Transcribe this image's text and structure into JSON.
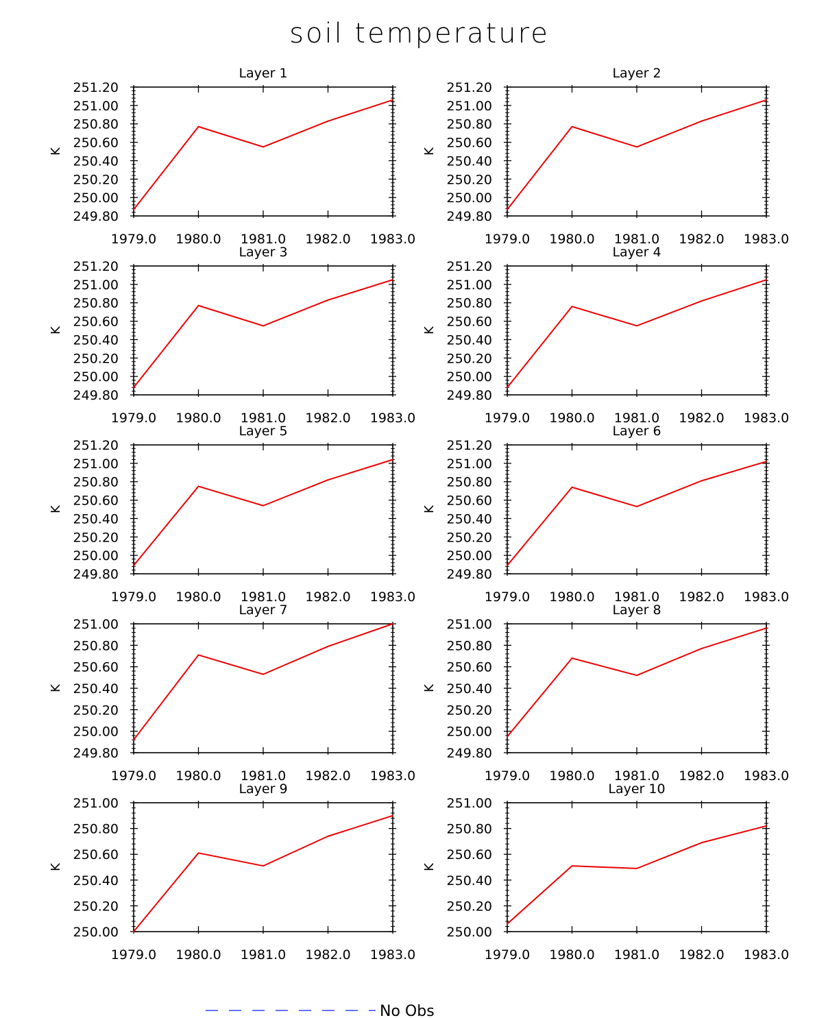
{
  "chart_data": {
    "type": "line",
    "title": "soil temperature",
    "legend": {
      "label": "No Obs",
      "color": "#3344ff",
      "style": "dashed",
      "placement": "bottom-center"
    },
    "series_color": "#ee0000",
    "panels": [
      {
        "title": "Layer 1",
        "ylabel": "K",
        "x": [
          1979.0,
          1980.0,
          1981.0,
          1982.0,
          1983.0
        ],
        "y": [
          249.87,
          250.77,
          250.55,
          250.83,
          251.06
        ],
        "xlim": [
          1979.0,
          1983.0
        ],
        "ylim": [
          249.8,
          251.2
        ],
        "xticks": [
          "1979.0",
          "1980.0",
          "1981.0",
          "1982.0",
          "1983.0"
        ],
        "yticks": [
          "249.80",
          "250.00",
          "250.20",
          "250.40",
          "250.60",
          "250.80",
          "251.00",
          "251.20"
        ]
      },
      {
        "title": "Layer 2",
        "ylabel": "K",
        "x": [
          1979.0,
          1980.0,
          1981.0,
          1982.0,
          1983.0
        ],
        "y": [
          249.87,
          250.77,
          250.55,
          250.83,
          251.06
        ],
        "xlim": [
          1979.0,
          1983.0
        ],
        "ylim": [
          249.8,
          251.2
        ],
        "xticks": [
          "1979.0",
          "1980.0",
          "1981.0",
          "1982.0",
          "1983.0"
        ],
        "yticks": [
          "249.80",
          "250.00",
          "250.20",
          "250.40",
          "250.60",
          "250.80",
          "251.00",
          "251.20"
        ]
      },
      {
        "title": "Layer 3",
        "ylabel": "K",
        "x": [
          1979.0,
          1980.0,
          1981.0,
          1982.0,
          1983.0
        ],
        "y": [
          249.88,
          250.77,
          250.55,
          250.83,
          251.05
        ],
        "xlim": [
          1979.0,
          1983.0
        ],
        "ylim": [
          249.8,
          251.2
        ],
        "xticks": [
          "1979.0",
          "1980.0",
          "1981.0",
          "1982.0",
          "1983.0"
        ],
        "yticks": [
          "249.80",
          "250.00",
          "250.20",
          "250.40",
          "250.60",
          "250.80",
          "251.00",
          "251.20"
        ]
      },
      {
        "title": "Layer 4",
        "ylabel": "K",
        "x": [
          1979.0,
          1980.0,
          1981.0,
          1982.0,
          1983.0
        ],
        "y": [
          249.88,
          250.76,
          250.55,
          250.82,
          251.05
        ],
        "xlim": [
          1979.0,
          1983.0
        ],
        "ylim": [
          249.8,
          251.2
        ],
        "xticks": [
          "1979.0",
          "1980.0",
          "1981.0",
          "1982.0",
          "1983.0"
        ],
        "yticks": [
          "249.80",
          "250.00",
          "250.20",
          "250.40",
          "250.60",
          "250.80",
          "251.00",
          "251.20"
        ]
      },
      {
        "title": "Layer 5",
        "ylabel": "K",
        "x": [
          1979.0,
          1980.0,
          1981.0,
          1982.0,
          1983.0
        ],
        "y": [
          249.89,
          250.75,
          250.54,
          250.82,
          251.04
        ],
        "xlim": [
          1979.0,
          1983.0
        ],
        "ylim": [
          249.8,
          251.2
        ],
        "xticks": [
          "1979.0",
          "1980.0",
          "1981.0",
          "1982.0",
          "1983.0"
        ],
        "yticks": [
          "249.80",
          "250.00",
          "250.20",
          "250.40",
          "250.60",
          "250.80",
          "251.00",
          "251.20"
        ]
      },
      {
        "title": "Layer 6",
        "ylabel": "K",
        "x": [
          1979.0,
          1980.0,
          1981.0,
          1982.0,
          1983.0
        ],
        "y": [
          249.89,
          250.74,
          250.53,
          250.81,
          251.02
        ],
        "xlim": [
          1979.0,
          1983.0
        ],
        "ylim": [
          249.8,
          251.2
        ],
        "xticks": [
          "1979.0",
          "1980.0",
          "1981.0",
          "1982.0",
          "1983.0"
        ],
        "yticks": [
          "249.80",
          "250.00",
          "250.20",
          "250.40",
          "250.60",
          "250.80",
          "251.00",
          "251.20"
        ]
      },
      {
        "title": "Layer 7",
        "ylabel": "K",
        "x": [
          1979.0,
          1980.0,
          1981.0,
          1982.0,
          1983.0
        ],
        "y": [
          249.92,
          250.71,
          250.53,
          250.79,
          251.0
        ],
        "xlim": [
          1979.0,
          1983.0
        ],
        "ylim": [
          249.8,
          251.0
        ],
        "xticks": [
          "1979.0",
          "1980.0",
          "1981.0",
          "1982.0",
          "1983.0"
        ],
        "yticks": [
          "249.80",
          "250.00",
          "250.20",
          "250.40",
          "250.60",
          "250.80",
          "251.00"
        ]
      },
      {
        "title": "Layer 8",
        "ylabel": "K",
        "x": [
          1979.0,
          1980.0,
          1981.0,
          1982.0,
          1983.0
        ],
        "y": [
          249.95,
          250.68,
          250.52,
          250.77,
          250.96
        ],
        "xlim": [
          1979.0,
          1983.0
        ],
        "ylim": [
          249.8,
          251.0
        ],
        "xticks": [
          "1979.0",
          "1980.0",
          "1981.0",
          "1982.0",
          "1983.0"
        ],
        "yticks": [
          "249.80",
          "250.00",
          "250.20",
          "250.40",
          "250.60",
          "250.80",
          "251.00"
        ]
      },
      {
        "title": "Layer 9",
        "ylabel": "K",
        "x": [
          1979.0,
          1980.0,
          1981.0,
          1982.0,
          1983.0
        ],
        "y": [
          250.0,
          250.61,
          250.51,
          250.74,
          250.9
        ],
        "xlim": [
          1979.0,
          1983.0
        ],
        "ylim": [
          250.0,
          251.0
        ],
        "xticks": [
          "1979.0",
          "1980.0",
          "1981.0",
          "1982.0",
          "1983.0"
        ],
        "yticks": [
          "250.00",
          "250.20",
          "250.40",
          "250.60",
          "250.80",
          "251.00"
        ]
      },
      {
        "title": "Layer 10",
        "ylabel": "K",
        "x": [
          1979.0,
          1980.0,
          1981.0,
          1982.0,
          1983.0
        ],
        "y": [
          250.06,
          250.51,
          250.49,
          250.69,
          250.82
        ],
        "xlim": [
          1979.0,
          1983.0
        ],
        "ylim": [
          250.0,
          251.0
        ],
        "xticks": [
          "1979.0",
          "1980.0",
          "1981.0",
          "1982.0",
          "1983.0"
        ],
        "yticks": [
          "250.00",
          "250.20",
          "250.40",
          "250.60",
          "250.80",
          "251.00"
        ]
      }
    ]
  }
}
